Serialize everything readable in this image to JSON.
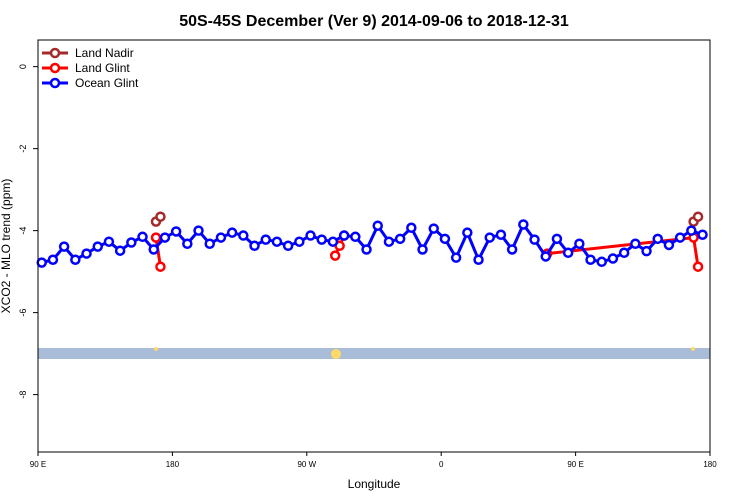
{
  "chart_data": {
    "type": "line",
    "title": "50S-45S December (Ver 9)   2014-09-06 to 2018-12-31",
    "x_label": "Longitude",
    "y_label": "XCO2 - MLO trend (ppm)",
    "xlim": [
      90,
      540
    ],
    "xticks": [
      {
        "value": 90,
        "label": "90 E"
      },
      180,
      {
        "value": 270,
        "label": "90 W"
      },
      {
        "value": 360,
        "label": "0"
      },
      {
        "value": 450,
        "label": "90 E"
      },
      {
        "value": 540,
        "label": "180"
      }
    ],
    "ylim": [
      -9.4,
      0.65
    ],
    "yticks": [
      0,
      -2,
      -4,
      -6,
      -8
    ],
    "legend": "top-left",
    "series": [
      {
        "name": "Land Nadir",
        "color": "#a52a2a",
        "x": [
          169,
          172,
          350,
          529,
          532
        ],
        "values": [
          -3.78,
          -3.66,
          null,
          -3.78,
          -3.66
        ]
      },
      {
        "name": "Land Glint",
        "color": "#ff0000",
        "x": [
          169,
          172,
          280,
          289,
          292,
          295,
          425,
          431,
          529,
          532
        ],
        "values": [
          -4.17,
          -4.88,
          null,
          -4.61,
          -4.37,
          -4.12,
          null,
          -4.56,
          -4.17,
          -4.88
        ]
      },
      {
        "name": "Ocean Glint",
        "color": "#0000ff",
        "x": [
          92.5,
          100,
          107.5,
          115,
          122.5,
          130,
          137.5,
          145,
          152.5,
          160,
          167.5,
          175,
          182.5,
          190,
          197.5,
          205,
          212.5,
          220,
          227.5,
          235,
          242.5,
          250,
          257.5,
          265,
          272.5,
          280,
          287.5,
          295,
          302.5,
          310,
          317.5,
          325,
          332.5,
          340,
          347.5,
          355,
          362.5,
          370,
          377.5,
          385,
          392.5,
          400,
          407.5,
          415,
          422.5,
          430,
          437.5,
          445,
          452.5,
          460,
          467.5,
          475,
          482.5,
          490,
          497.5,
          505,
          512.5,
          520,
          527.5,
          535
        ],
        "values": [
          -4.78,
          -4.71,
          -4.39,
          -4.71,
          -4.56,
          -4.39,
          -4.27,
          -4.49,
          -4.29,
          -4.15,
          -4.46,
          -4.17,
          -4.02,
          -4.32,
          -4.0,
          -4.32,
          -4.17,
          -4.05,
          -4.12,
          -4.37,
          -4.22,
          -4.27,
          -4.37,
          -4.27,
          -4.12,
          -4.22,
          -4.27,
          -4.12,
          -4.15,
          -4.46,
          -3.88,
          -4.27,
          -4.2,
          -3.93,
          -4.46,
          -3.95,
          -4.2,
          -4.66,
          -4.05,
          -4.71,
          -4.17,
          -4.1,
          -4.46,
          -3.85,
          -4.22,
          -4.63,
          -4.2,
          -4.54,
          -4.32,
          -4.71,
          -4.76,
          -4.68,
          -4.54,
          -4.32,
          -4.5,
          -4.2,
          -4.35,
          -4.17,
          -4.0,
          -4.1
        ]
      }
    ]
  }
}
